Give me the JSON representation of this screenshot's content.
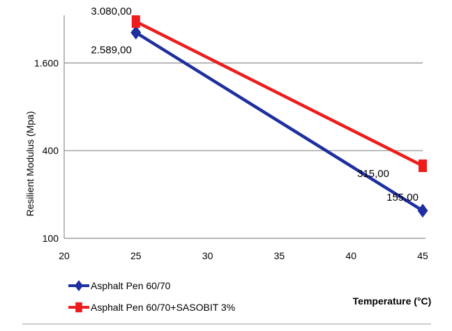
{
  "chart_data": {
    "type": "line",
    "title": "",
    "xlabel": "Temperature  (°C)",
    "ylabel": "Resilient Modulus  (Mpa)",
    "xlim": [
      20,
      45
    ],
    "x_ticks": [
      20,
      25,
      30,
      35,
      40,
      45
    ],
    "y_scale": "log",
    "y_ticks": [
      100,
      400,
      1600
    ],
    "y_tick_labels": [
      "100",
      "400",
      "1.600"
    ],
    "ylim": [
      100,
      3400
    ],
    "grid": true,
    "legend_position": "bottom-left",
    "series": [
      {
        "name": "Asphalt Pen 60/70",
        "x": [
          25,
          45
        ],
        "values": [
          2589,
          155
        ],
        "labels": [
          "2.589,00",
          "155,00"
        ],
        "color": "#1f2fa0",
        "marker": "diamond"
      },
      {
        "name": "Asphalt Pen 60/70+SASOBIT 3%",
        "x": [
          25,
          45
        ],
        "values": [
          3080,
          315
        ],
        "labels": [
          "3.080,00",
          "315,00"
        ],
        "color": "#ee1c1c",
        "marker": "square"
      }
    ]
  }
}
